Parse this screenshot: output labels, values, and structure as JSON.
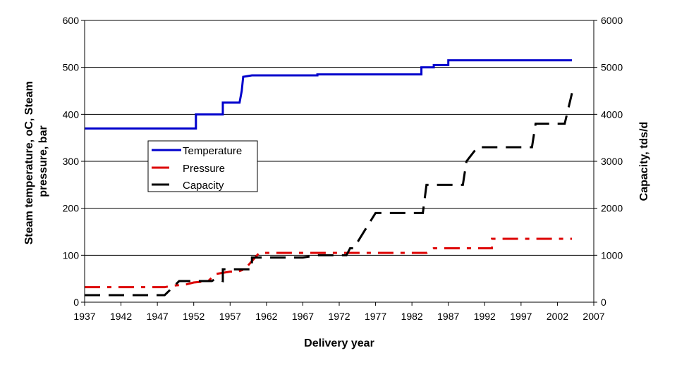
{
  "chart_data": {
    "type": "line",
    "xlabel": "Delivery year",
    "ylabel": "Steam temperature, oC, Steam pressure, bar",
    "ylabel_lines": [
      "Steam temperature, oC, Steam",
      "pressure, bar"
    ],
    "y2label": "Capacity, tds/d",
    "xlim": [
      1937,
      2007
    ],
    "ylim": [
      0,
      600
    ],
    "y2lim": [
      0,
      6000
    ],
    "xticks": [
      1937,
      1942,
      1947,
      1952,
      1957,
      1962,
      1967,
      1972,
      1977,
      1982,
      1987,
      1992,
      1997,
      2002,
      2007
    ],
    "yticks": [
      0,
      100,
      200,
      300,
      400,
      500,
      600
    ],
    "y2ticks": [
      0,
      1000,
      2000,
      3000,
      4000,
      5000,
      6000
    ],
    "grid": "horizontal",
    "legend": "center-left",
    "series": [
      {
        "name": "Temperature",
        "axis": "left",
        "color": "#0000cc",
        "style": "solid",
        "points": [
          [
            1937,
            370
          ],
          [
            1952.3,
            370
          ],
          [
            1952.3,
            400
          ],
          [
            1956,
            400
          ],
          [
            1956,
            425
          ],
          [
            1958.3,
            425
          ],
          [
            1958.6,
            450
          ],
          [
            1958.8,
            480
          ],
          [
            1960,
            483
          ],
          [
            1969,
            483
          ],
          [
            1969,
            485
          ],
          [
            1983.3,
            485
          ],
          [
            1983.3,
            500
          ],
          [
            1985,
            500
          ],
          [
            1985,
            505
          ],
          [
            1987,
            505
          ],
          [
            1987,
            515
          ],
          [
            2004,
            515
          ]
        ]
      },
      {
        "name": "Pressure",
        "axis": "left",
        "color": "#dd0000",
        "style": "dashdot",
        "points": [
          [
            1937,
            32
          ],
          [
            1948,
            32
          ],
          [
            1949,
            35
          ],
          [
            1951,
            38
          ],
          [
            1952,
            42
          ],
          [
            1954,
            45
          ],
          [
            1955,
            60
          ],
          [
            1957,
            65
          ],
          [
            1958,
            65
          ],
          [
            1959,
            70
          ],
          [
            1961,
            105
          ],
          [
            1984,
            105
          ],
          [
            1985,
            115
          ],
          [
            1993,
            115
          ],
          [
            1993,
            135
          ],
          [
            2004,
            135
          ]
        ]
      },
      {
        "name": "Capacity",
        "axis": "right",
        "color": "#000000",
        "style": "dash",
        "points": [
          [
            1937,
            150
          ],
          [
            1948,
            150
          ],
          [
            1949,
            300
          ],
          [
            1950,
            450
          ],
          [
            1954.5,
            450
          ],
          [
            1955,
            500
          ],
          [
            1956,
            450
          ],
          [
            1956,
            700
          ],
          [
            1959,
            700
          ],
          [
            1960,
            700
          ],
          [
            1960,
            950
          ],
          [
            1967,
            950
          ],
          [
            1969,
            1000
          ],
          [
            1973,
            1000
          ],
          [
            1973.5,
            1150
          ],
          [
            1974,
            1150
          ],
          [
            1977,
            1900
          ],
          [
            1983.5,
            1900
          ],
          [
            1984,
            2500
          ],
          [
            1989,
            2500
          ],
          [
            1989.5,
            3000
          ],
          [
            1990,
            3100
          ],
          [
            1991,
            3300
          ],
          [
            1998.5,
            3300
          ],
          [
            1999,
            3800
          ],
          [
            2003,
            3800
          ],
          [
            2004,
            4450
          ]
        ]
      }
    ]
  }
}
